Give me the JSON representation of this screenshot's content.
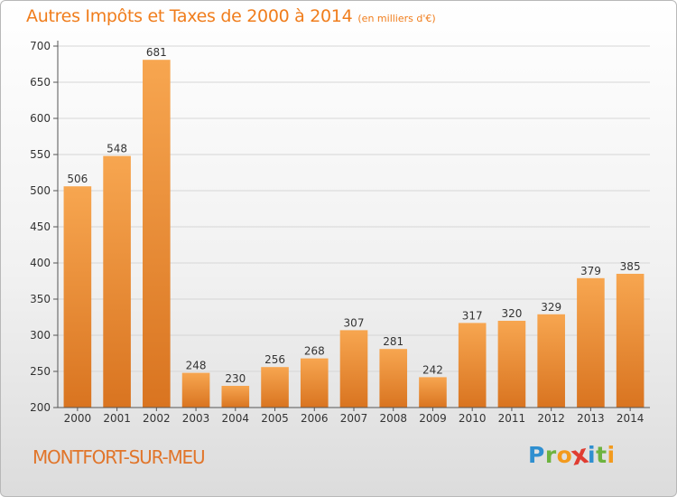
{
  "chart_data": {
    "type": "bar",
    "title": "Autres Impôts et Taxes de 2000 à 2014",
    "subtitle": "(en milliers d'€)",
    "categories": [
      "2000",
      "2001",
      "2002",
      "2003",
      "2004",
      "2005",
      "2006",
      "2007",
      "2008",
      "2009",
      "2010",
      "2011",
      "2012",
      "2013",
      "2014"
    ],
    "values": [
      506,
      548,
      681,
      248,
      230,
      256,
      268,
      307,
      281,
      242,
      317,
      320,
      329,
      379,
      385
    ],
    "ylim": [
      200,
      700
    ],
    "yticks": [
      200,
      250,
      300,
      350,
      400,
      450,
      500,
      550,
      600,
      650,
      700
    ],
    "grid": true,
    "bar_color_light": "#f7a650",
    "bar_color_dark": "#d97420"
  },
  "footer": {
    "commune": "MONTFORT-SUR-MEU",
    "logo_letters": [
      {
        "char": "P",
        "color": "#2f8fd0"
      },
      {
        "char": "r",
        "color": "#6db33f"
      },
      {
        "char": "o",
        "color": "#f39a1d"
      },
      {
        "char": "x",
        "color": "#e03c31"
      },
      {
        "char": "i",
        "color": "#2f8fd0"
      },
      {
        "char": "t",
        "color": "#6db33f"
      },
      {
        "char": "i",
        "color": "#f39a1d"
      }
    ]
  },
  "colors": {
    "title": "#f07d1c",
    "commune": "#e1752a"
  }
}
